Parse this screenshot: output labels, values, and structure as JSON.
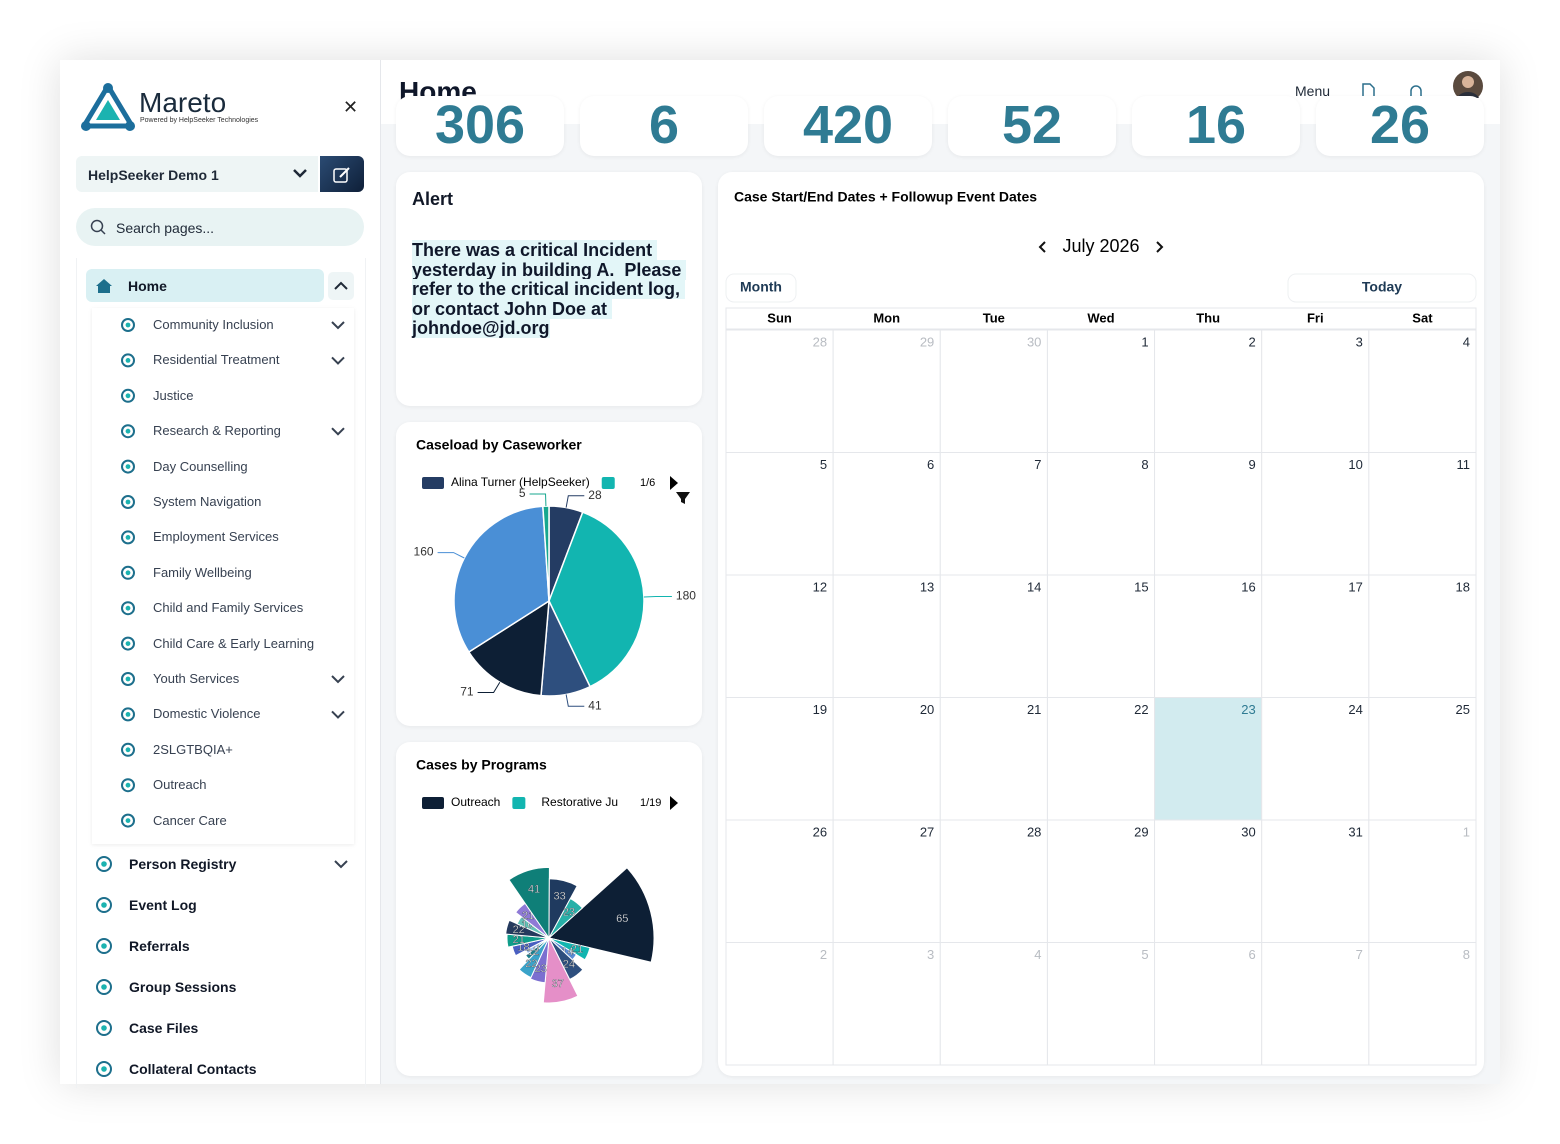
{
  "brand": {
    "name": "Mareto",
    "tagline": "Powered by HelpSeeker Technologies"
  },
  "sidebar": {
    "org": "HelpSeeker Demo 1",
    "search": "Search pages...",
    "home": "Home",
    "sub_items": [
      {
        "label": "Community Inclusion",
        "expandable": true
      },
      {
        "label": "Residential Treatment",
        "expandable": true
      },
      {
        "label": "Justice",
        "expandable": false
      },
      {
        "label": "Research & Reporting",
        "expandable": true
      },
      {
        "label": "Day Counselling",
        "expandable": false
      },
      {
        "label": "System Navigation",
        "expandable": false
      },
      {
        "label": "Employment Services",
        "expandable": false
      },
      {
        "label": "Family Wellbeing",
        "expandable": false
      },
      {
        "label": "Child and Family Services",
        "expandable": false
      },
      {
        "label": "Child Care & Early Learning",
        "expandable": false
      },
      {
        "label": "Youth Services",
        "expandable": true
      },
      {
        "label": "Domestic Violence",
        "expandable": true
      },
      {
        "label": "2SLGTBQIA+",
        "expandable": false
      },
      {
        "label": "Outreach",
        "expandable": false
      },
      {
        "label": "Cancer Care",
        "expandable": false
      }
    ],
    "main_items": [
      {
        "label": "Person Registry",
        "expandable": true
      },
      {
        "label": "Event Log",
        "expandable": false
      },
      {
        "label": "Referrals",
        "expandable": false
      },
      {
        "label": "Group Sessions",
        "expandable": false
      },
      {
        "label": "Case Files",
        "expandable": false
      },
      {
        "label": "Collateral Contacts",
        "expandable": false
      }
    ]
  },
  "header": {
    "title": "Home",
    "menu": "Menu"
  },
  "stats": [
    306,
    6,
    420,
    52,
    16,
    26
  ],
  "alert": {
    "title": "Alert",
    "text": "There was a critical Incident yesterday in building A.  Please refer to the critical incident log, or contact John Doe at johndoe@jd.org"
  },
  "chart_data": [
    {
      "type": "pie",
      "title": "Caseload by Caseworker",
      "legend_page": "1/6",
      "categories": [
        "Alina Turner (HelpSeeker)",
        null,
        null,
        null,
        null,
        null
      ],
      "values": [
        28,
        180,
        41,
        71,
        160,
        5
      ],
      "colors": [
        "#243c63",
        "#12b5b0",
        "#2e4f7e",
        "#0d1f35",
        "#4a8fd6",
        "#17a78f"
      ]
    },
    {
      "type": "rose",
      "title": "Cases by Programs",
      "legend_page": "1/19",
      "categories": [
        "Outreach",
        "Restorative Ju",
        null,
        null,
        null,
        null,
        null,
        null,
        null,
        null,
        null,
        null,
        null,
        null,
        null,
        null,
        null
      ],
      "values": [
        65,
        21,
        14,
        24,
        37,
        23,
        22,
        12,
        10,
        18,
        21,
        22,
        16,
        21,
        41,
        33,
        23
      ],
      "colors": [
        "#0d1f35",
        "#12b5b0",
        "#5b8dd6",
        "#2e4f7e",
        "#e58fc8",
        "#7b6fd0",
        "#3aa3c9",
        "#1d7f8c",
        "#a3c4f3",
        "#4a5fc1",
        "#0f9d8a",
        "#253a5e",
        "#66c2b8",
        "#8f7ad6",
        "#0f7f78",
        "#1f3a5f",
        "#27b0a8"
      ]
    }
  ],
  "calendar": {
    "title": "Case Start/End Dates + Followup Event Dates",
    "month": "July 2026",
    "view_button": "Month",
    "today_button": "Today",
    "weekdays": [
      "Sun",
      "Mon",
      "Tue",
      "Wed",
      "Thu",
      "Fri",
      "Sat"
    ],
    "weeks": [
      [
        28,
        29,
        30,
        1,
        2,
        3,
        4
      ],
      [
        5,
        6,
        7,
        8,
        9,
        10,
        11
      ],
      [
        12,
        13,
        14,
        15,
        16,
        17,
        18
      ],
      [
        19,
        20,
        21,
        22,
        23,
        24,
        25
      ],
      [
        26,
        27,
        28,
        29,
        30,
        31,
        1
      ],
      [
        2,
        3,
        4,
        5,
        6,
        7,
        8
      ]
    ],
    "today": 23
  }
}
